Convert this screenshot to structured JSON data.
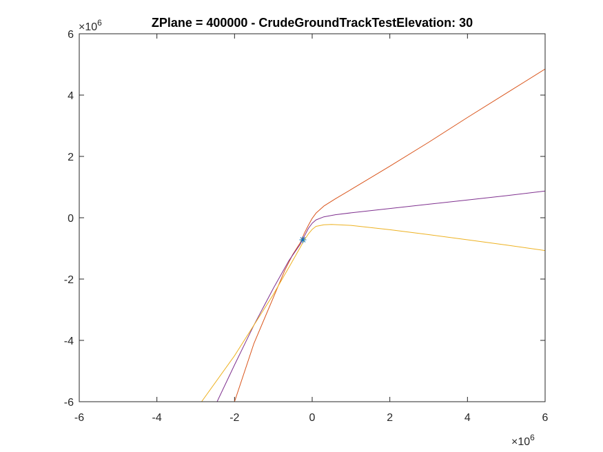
{
  "chart_data": {
    "type": "line",
    "title": "ZPlane = 400000 - CrudeGroundTrackTestElevation: 30",
    "xlabel": "",
    "ylabel": "",
    "xlim": [
      -6000000,
      6000000
    ],
    "ylim": [
      -6000000,
      6000000
    ],
    "x_exponent_label": "×10",
    "x_exponent_power": "6",
    "y_exponent_label": "×10",
    "y_exponent_power": "6",
    "xticks": [
      -6,
      -4,
      -2,
      0,
      2,
      4,
      6
    ],
    "yticks": [
      -6,
      -4,
      -2,
      0,
      2,
      4,
      6
    ],
    "xtick_labels": [
      "-6",
      "-4",
      "-2",
      "0",
      "2",
      "4",
      "6"
    ],
    "ytick_labels": [
      "-6",
      "-4",
      "-2",
      "0",
      "2",
      "4",
      "6"
    ],
    "grid": false,
    "series": [
      {
        "color": "#D95319",
        "x": [
          -2000000,
          -1500000,
          -1000000,
          -700000,
          -500000,
          -300000,
          -200000,
          -100000,
          0,
          100000,
          300000,
          600000,
          1000000,
          2000000,
          3000000,
          4000000,
          5000000,
          6000000
        ],
        "y": [
          -6000000,
          -4100000,
          -2600000,
          -1700000,
          -1200000,
          -800000,
          -500000,
          -250000,
          -20000,
          150000,
          380000,
          620000,
          920000,
          1680000,
          2460000,
          3270000,
          4060000,
          4850000
        ]
      },
      {
        "color": "#7E2F8E",
        "x": [
          -2450000,
          -2000000,
          -1500000,
          -1000000,
          -600000,
          -300000,
          -200000,
          -100000,
          0,
          100000,
          300000,
          600000,
          1000000,
          2000000,
          3000000,
          4000000,
          5000000,
          6000000
        ],
        "y": [
          -6000000,
          -4800000,
          -3500000,
          -2300000,
          -1400000,
          -850000,
          -600000,
          -350000,
          -180000,
          -70000,
          30000,
          100000,
          160000,
          300000,
          440000,
          580000,
          720000,
          870000
        ]
      },
      {
        "color": "#EDB120",
        "x": [
          -2850000,
          -2000000,
          -1500000,
          -1000000,
          -500000,
          -300000,
          -200000,
          -100000,
          0,
          100000,
          300000,
          500000,
          1000000,
          2000000,
          3000000,
          4000000,
          5000000,
          6000000
        ],
        "y": [
          -6000000,
          -4500000,
          -3500000,
          -2500000,
          -1400000,
          -950000,
          -720000,
          -530000,
          -380000,
          -280000,
          -230000,
          -220000,
          -250000,
          -390000,
          -550000,
          -720000,
          -890000,
          -1070000
        ]
      }
    ],
    "markers": [
      {
        "x": -240000,
        "y": -720000,
        "symbol": "*",
        "color": "#0072BD"
      }
    ]
  }
}
